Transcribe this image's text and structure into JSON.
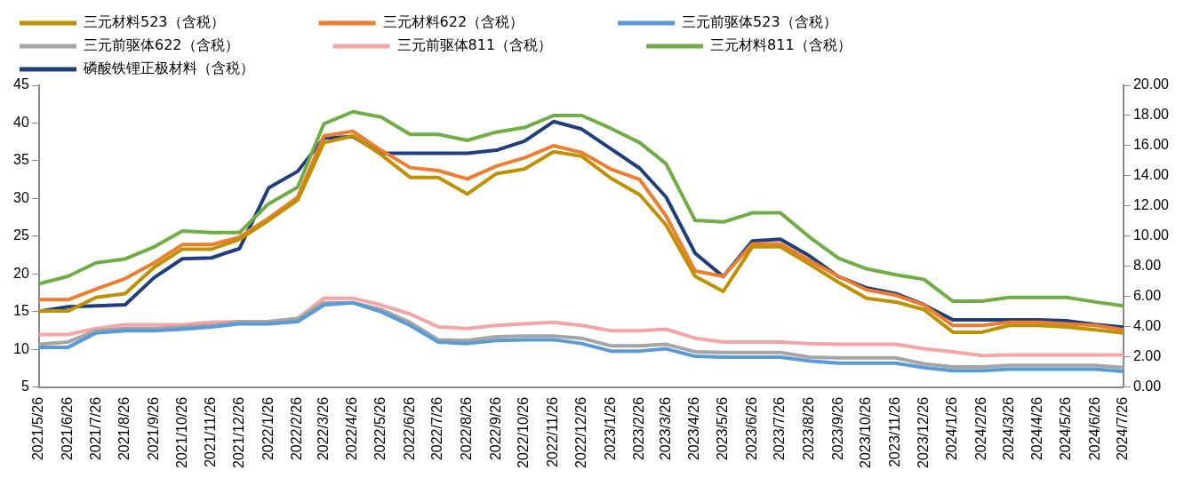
{
  "chart_data": {
    "type": "line",
    "legend": "top",
    "grid": false,
    "marker": "none",
    "line_style": "solid",
    "x": [
      "2021-05-26",
      "2021-06-26",
      "2021-07-26",
      "2021-08-26",
      "2021-09-26",
      "2021-10-26",
      "2021-11-26",
      "2021-12-26",
      "2022-01-26",
      "2022-02-26",
      "2022-03-26",
      "2022-04-26",
      "2022-05-26",
      "2022-06-26",
      "2022-07-26",
      "2022-08-26",
      "2022-09-26",
      "2022-10-26",
      "2022-11-26",
      "2022-12-26",
      "2023-01-26",
      "2023-02-26",
      "2023-03-26",
      "2023-04-26",
      "2023-05-26",
      "2023-06-26",
      "2023-07-26",
      "2023-08-26",
      "2023-09-26",
      "2023-10-26",
      "2023-11-26",
      "2023-12-26",
      "2024-01-26",
      "2024-02-26",
      "2024-03-26",
      "2024-04-26",
      "2024-05-26",
      "2024-06-26",
      "2024-07-26"
    ],
    "xlim": [
      "2021-05-26",
      "2024-07-26"
    ],
    "xticks": [
      {
        "value": "2021-05-26",
        "label": "2021/5/26"
      },
      {
        "value": "2021-06-26",
        "label": "2021/6/26"
      },
      {
        "value": "2021-07-26",
        "label": "2021/7/26"
      },
      {
        "value": "2021-08-26",
        "label": "2021/8/26"
      },
      {
        "value": "2021-09-26",
        "label": "2021/9/26"
      },
      {
        "value": "2021-10-26",
        "label": "2021/10/26"
      },
      {
        "value": "2021-11-26",
        "label": "2021/11/26"
      },
      {
        "value": "2021-12-26",
        "label": "2021/12/26"
      },
      {
        "value": "2022-01-26",
        "label": "2022/1/26"
      },
      {
        "value": "2022-02-26",
        "label": "2022/2/26"
      },
      {
        "value": "2022-03-26",
        "label": "2022/3/26"
      },
      {
        "value": "2022-04-26",
        "label": "2022/4/26"
      },
      {
        "value": "2022-05-26",
        "label": "2022/5/26"
      },
      {
        "value": "2022-06-26",
        "label": "2022/6/26"
      },
      {
        "value": "2022-07-26",
        "label": "2022/7/26"
      },
      {
        "value": "2022-08-26",
        "label": "2022/8/26"
      },
      {
        "value": "2022-09-26",
        "label": "2022/9/26"
      },
      {
        "value": "2022-10-26",
        "label": "2022/10/26"
      },
      {
        "value": "2022-11-26",
        "label": "2022/11/26"
      },
      {
        "value": "2022-12-26",
        "label": "2022/12/26"
      },
      {
        "value": "2023-01-26",
        "label": "2023/1/26"
      },
      {
        "value": "2023-02-26",
        "label": "2023/2/26"
      },
      {
        "value": "2023-03-26",
        "label": "2023/3/26"
      },
      {
        "value": "2023-04-26",
        "label": "2023/4/26"
      },
      {
        "value": "2023-05-26",
        "label": "2023/5/26"
      },
      {
        "value": "2023-06-26",
        "label": "2023/6/26"
      },
      {
        "value": "2023-07-26",
        "label": "2023/7/26"
      },
      {
        "value": "2023-08-26",
        "label": "2023/8/26"
      },
      {
        "value": "2023-09-26",
        "label": "2023/9/26"
      },
      {
        "value": "2023-10-26",
        "label": "2023/10/26"
      },
      {
        "value": "2023-11-26",
        "label": "2023/11/26"
      },
      {
        "value": "2023-12-26",
        "label": "2023/12/26"
      },
      {
        "value": "2024-01-26",
        "label": "2024/1/26"
      },
      {
        "value": "2024-02-26",
        "label": "2024/2/26"
      },
      {
        "value": "2024-03-26",
        "label": "2024/3/26"
      },
      {
        "value": "2024-04-26",
        "label": "2024/4/26"
      },
      {
        "value": "2024-05-26",
        "label": "2024/5/26"
      },
      {
        "value": "2024-06-26",
        "label": "2024/6/26"
      },
      {
        "value": "2024-07-26",
        "label": "2024/7/26"
      }
    ],
    "ylim": [
      5,
      45
    ],
    "yticks": [
      5,
      10,
      15,
      20,
      25,
      30,
      35,
      40,
      45
    ],
    "y2lim": [
      0,
      20
    ],
    "y2ticks": [
      {
        "value": 0,
        "label": "0.00"
      },
      {
        "value": 2,
        "label": "2.00"
      },
      {
        "value": 4,
        "label": "4.00"
      },
      {
        "value": 6,
        "label": "6.00"
      },
      {
        "value": 8,
        "label": "8.00"
      },
      {
        "value": 10,
        "label": "10.00"
      },
      {
        "value": 12,
        "label": "12.00"
      },
      {
        "value": 14,
        "label": "14.00"
      },
      {
        "value": 16,
        "label": "16.00"
      },
      {
        "value": 18,
        "label": "18.00"
      },
      {
        "value": 20,
        "label": "20.00"
      }
    ],
    "series": [
      {
        "name": "三元材料523（含税）",
        "color": "#bf9000",
        "values": [
          15.1,
          15.1,
          16.9,
          17.4,
          20.9,
          23.3,
          23.3,
          24.6,
          27.1,
          29.8,
          37.4,
          38.3,
          35.8,
          32.8,
          32.8,
          30.6,
          33.3,
          33.9,
          36.2,
          35.6,
          32.7,
          30.5,
          26.5,
          19.7,
          17.7,
          23.6,
          23.6,
          21.3,
          18.9,
          16.8,
          16.3,
          15.3,
          12.3,
          12.3,
          13.2,
          13.2,
          13.0,
          12.6,
          12.2
        ]
      },
      {
        "name": "三元材料622（含税）",
        "color": "#ed7d31",
        "values": [
          16.6,
          16.6,
          18.0,
          19.4,
          21.5,
          23.9,
          23.9,
          24.9,
          27.4,
          30.2,
          38.3,
          38.9,
          36.4,
          34.1,
          33.7,
          32.6,
          34.3,
          35.4,
          37.0,
          36.1,
          33.9,
          32.5,
          27.7,
          20.4,
          19.7,
          24.0,
          24.0,
          21.8,
          19.7,
          17.9,
          17.2,
          15.9,
          13.2,
          13.2,
          13.6,
          13.6,
          13.4,
          13.2,
          12.6
        ]
      },
      {
        "name": "三元前驱体523（含税）",
        "color": "#5b9bd5",
        "values": [
          10.3,
          10.3,
          12.2,
          12.5,
          12.5,
          12.7,
          13.0,
          13.4,
          13.4,
          13.7,
          15.9,
          16.2,
          15.0,
          13.2,
          11.0,
          10.8,
          11.2,
          11.3,
          11.3,
          10.8,
          9.8,
          9.8,
          10.1,
          9.1,
          9.0,
          9.0,
          9.0,
          8.5,
          8.2,
          8.2,
          8.2,
          7.6,
          7.2,
          7.2,
          7.4,
          7.4,
          7.4,
          7.4,
          7.1
        ]
      },
      {
        "name": "三元前驱体622（含税）",
        "color": "#a5a5a5",
        "values": [
          10.7,
          11.0,
          12.5,
          12.8,
          12.8,
          13.0,
          13.2,
          13.7,
          13.7,
          14.1,
          16.2,
          16.2,
          15.3,
          13.6,
          11.3,
          11.2,
          11.7,
          11.8,
          11.8,
          11.5,
          10.5,
          10.5,
          10.7,
          9.7,
          9.6,
          9.6,
          9.6,
          9.0,
          8.9,
          8.9,
          8.9,
          8.1,
          7.7,
          7.7,
          7.9,
          7.9,
          7.9,
          7.9,
          7.6
        ]
      },
      {
        "name": "三元前驱体811（含税）",
        "color": "#f4a6a6",
        "values": [
          12.0,
          12.0,
          12.8,
          13.3,
          13.3,
          13.3,
          13.6,
          13.7,
          13.7,
          14.1,
          16.8,
          16.8,
          15.9,
          14.7,
          13.0,
          12.8,
          13.2,
          13.4,
          13.6,
          13.2,
          12.5,
          12.5,
          12.7,
          11.5,
          11.0,
          11.0,
          11.0,
          10.8,
          10.7,
          10.7,
          10.7,
          10.1,
          9.7,
          9.2,
          9.3,
          9.3,
          9.3,
          9.3,
          9.3
        ]
      },
      {
        "name": "三元材料811（含税）",
        "color": "#70ad47",
        "values": [
          18.7,
          19.7,
          21.5,
          22.0,
          23.6,
          25.7,
          25.5,
          25.5,
          29.3,
          31.5,
          39.9,
          41.5,
          40.8,
          38.5,
          38.5,
          37.7,
          38.8,
          39.4,
          41.0,
          41.0,
          39.3,
          37.4,
          34.6,
          27.1,
          26.9,
          28.1,
          28.1,
          24.9,
          22.1,
          20.7,
          19.9,
          19.3,
          16.4,
          16.4,
          16.9,
          16.9,
          16.9,
          16.3,
          15.8
        ]
      },
      {
        "name": "磷酸铁锂正极材料（含税）",
        "color": "#203f7a",
        "axis": "y2",
        "values": [
          5.03,
          5.34,
          5.4,
          5.47,
          7.27,
          8.51,
          8.57,
          9.19,
          13.2,
          14.3,
          16.5,
          16.6,
          15.5,
          15.5,
          15.5,
          15.5,
          15.7,
          16.3,
          17.6,
          17.1,
          15.8,
          14.5,
          12.6,
          8.88,
          7.33,
          9.69,
          9.81,
          8.7,
          7.33,
          6.58,
          6.21,
          5.47,
          4.47,
          4.47,
          4.47,
          4.47,
          4.41,
          4.16,
          3.98
        ]
      }
    ]
  }
}
